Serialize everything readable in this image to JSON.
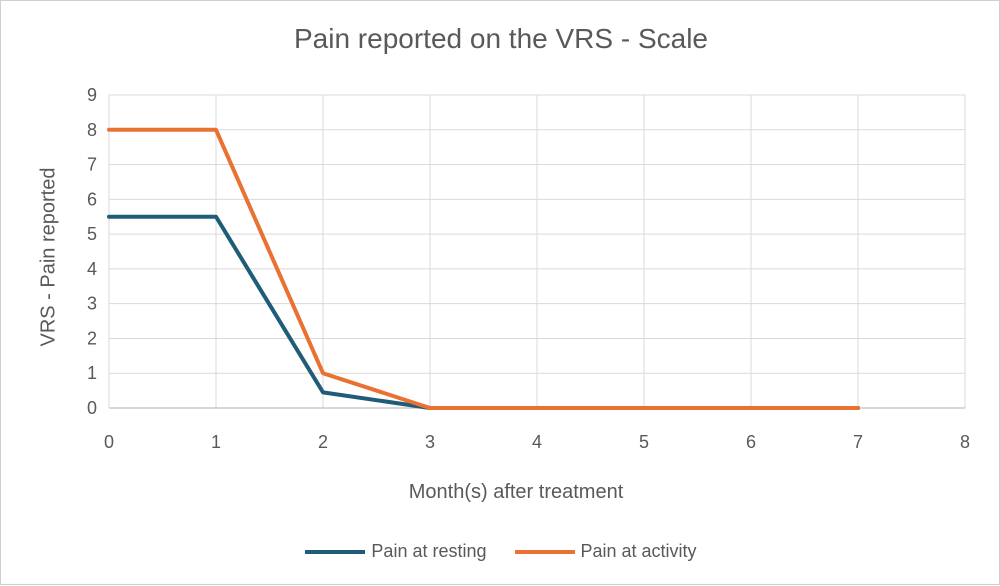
{
  "chart_data": {
    "type": "line",
    "title": "Pain reported on the VRS - Scale",
    "xlabel": "Month(s) after treatment",
    "ylabel": "VRS - Pain reported",
    "xlim": [
      0,
      8
    ],
    "ylim": [
      0,
      9
    ],
    "x_ticks": [
      "0",
      "1",
      "2",
      "3",
      "4",
      "5",
      "6",
      "7",
      "8"
    ],
    "y_ticks": [
      "0",
      "1",
      "2",
      "3",
      "4",
      "5",
      "6",
      "7",
      "8",
      "9"
    ],
    "grid": true,
    "legend_position": "bottom",
    "series": [
      {
        "name": "Pain at resting",
        "color": "#1f5c78",
        "x": [
          0,
          1,
          2,
          3,
          7
        ],
        "values": [
          5.5,
          5.5,
          0.45,
          0,
          0
        ]
      },
      {
        "name": "Pain at activity",
        "color": "#e97132",
        "x": [
          0,
          1,
          2,
          3,
          7
        ],
        "values": [
          8,
          8,
          1,
          0,
          0
        ]
      }
    ]
  }
}
